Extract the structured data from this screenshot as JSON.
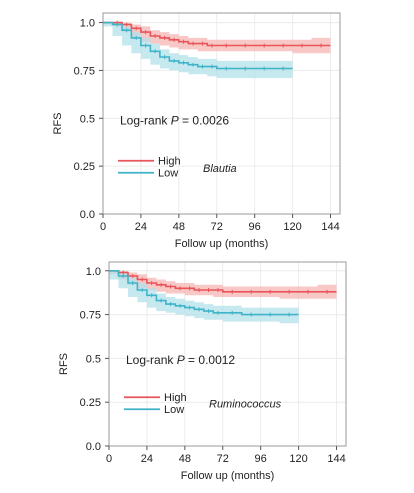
{
  "colors": {
    "high": "#e8545a",
    "high_band": "#f6b6b4",
    "low": "#3fb4c9",
    "low_band": "#b3e0ea",
    "frame": "#9a9a9a",
    "grid": "#ececec"
  },
  "chart_data": [
    {
      "type": "line",
      "title": "",
      "xlabel": "Follow up (months)",
      "ylabel": "RFS",
      "xlim": [
        0,
        150
      ],
      "ylim": [
        0,
        1.05
      ],
      "xticks": [
        0,
        24,
        48,
        72,
        96,
        120,
        144
      ],
      "yticks": [
        0.0,
        0.25,
        0.5,
        0.75,
        1.0
      ],
      "ytick_labels": [
        "0.0",
        "0.25",
        "0.5",
        "0.75",
        "1.0"
      ],
      "grid": true,
      "annotation_prefix": "Log-rank ",
      "annotation_p": "P",
      "annotation_suffix": " = 0.0026",
      "taxon": "Blautia",
      "legend_position": "lower-left",
      "series": [
        {
          "name": "High",
          "color_key": "high",
          "x": [
            0,
            6,
            12,
            18,
            24,
            30,
            36,
            42,
            48,
            54,
            60,
            66,
            72,
            84,
            96,
            108,
            120,
            132,
            144
          ],
          "y": [
            1.0,
            1.0,
            0.99,
            0.97,
            0.95,
            0.93,
            0.92,
            0.91,
            0.9,
            0.89,
            0.89,
            0.88,
            0.88,
            0.88,
            0.88,
            0.88,
            0.88,
            0.88,
            0.88
          ],
          "band_upper": [
            1.0,
            1.0,
            1.0,
            0.99,
            0.98,
            0.96,
            0.95,
            0.94,
            0.93,
            0.92,
            0.92,
            0.91,
            0.91,
            0.91,
            0.91,
            0.91,
            0.91,
            0.92,
            0.92
          ],
          "band_lower": [
            1.0,
            1.0,
            0.98,
            0.95,
            0.92,
            0.9,
            0.89,
            0.88,
            0.87,
            0.86,
            0.86,
            0.85,
            0.85,
            0.85,
            0.85,
            0.85,
            0.85,
            0.84,
            0.84
          ]
        },
        {
          "name": "Low",
          "color_key": "low",
          "x": [
            0,
            6,
            12,
            18,
            24,
            30,
            36,
            42,
            48,
            54,
            60,
            66,
            72,
            84,
            96,
            108,
            120
          ],
          "y": [
            1.0,
            0.99,
            0.96,
            0.92,
            0.88,
            0.85,
            0.82,
            0.8,
            0.79,
            0.78,
            0.77,
            0.77,
            0.76,
            0.76,
            0.76,
            0.76,
            0.76
          ],
          "band_upper": [
            1.0,
            1.0,
            0.98,
            0.95,
            0.92,
            0.89,
            0.86,
            0.84,
            0.83,
            0.82,
            0.81,
            0.81,
            0.8,
            0.8,
            0.8,
            0.8,
            0.8
          ],
          "band_lower": [
            1.0,
            0.98,
            0.93,
            0.88,
            0.84,
            0.81,
            0.78,
            0.76,
            0.75,
            0.74,
            0.73,
            0.73,
            0.72,
            0.71,
            0.71,
            0.71,
            0.71
          ]
        }
      ]
    },
    {
      "type": "line",
      "title": "",
      "xlabel": "Follow up (months)",
      "ylabel": "RFS",
      "xlim": [
        0,
        150
      ],
      "ylim": [
        0,
        1.05
      ],
      "xticks": [
        0,
        24,
        48,
        72,
        96,
        120,
        144
      ],
      "yticks": [
        0.0,
        0.25,
        0.5,
        0.75,
        1.0
      ],
      "ytick_labels": [
        "0.0",
        "0.25",
        "0.5",
        "0.75",
        "1.0"
      ],
      "grid": true,
      "annotation_prefix": "Log-rank ",
      "annotation_p": "P",
      "annotation_suffix": " = 0.0012",
      "taxon": "Ruminococcus",
      "legend_position": "lower-left",
      "series": [
        {
          "name": "High",
          "color_key": "high",
          "x": [
            0,
            6,
            12,
            18,
            24,
            30,
            36,
            42,
            48,
            54,
            60,
            66,
            72,
            84,
            96,
            108,
            120,
            132,
            144
          ],
          "y": [
            1.0,
            0.99,
            0.97,
            0.95,
            0.93,
            0.92,
            0.91,
            0.9,
            0.9,
            0.89,
            0.89,
            0.89,
            0.88,
            0.88,
            0.88,
            0.88,
            0.88,
            0.88,
            0.88
          ],
          "band_upper": [
            1.0,
            1.0,
            0.99,
            0.98,
            0.96,
            0.95,
            0.94,
            0.93,
            0.93,
            0.92,
            0.92,
            0.92,
            0.91,
            0.91,
            0.91,
            0.91,
            0.91,
            0.92,
            0.92
          ],
          "band_lower": [
            1.0,
            0.98,
            0.95,
            0.92,
            0.9,
            0.89,
            0.88,
            0.87,
            0.87,
            0.86,
            0.86,
            0.86,
            0.85,
            0.85,
            0.85,
            0.85,
            0.84,
            0.84,
            0.84
          ]
        },
        {
          "name": "Low",
          "color_key": "low",
          "x": [
            0,
            6,
            12,
            18,
            24,
            30,
            36,
            42,
            48,
            54,
            60,
            66,
            72,
            84,
            96,
            108,
            120
          ],
          "y": [
            1.0,
            0.97,
            0.93,
            0.89,
            0.86,
            0.83,
            0.81,
            0.8,
            0.79,
            0.78,
            0.77,
            0.76,
            0.76,
            0.75,
            0.75,
            0.75,
            0.75
          ],
          "band_upper": [
            1.0,
            0.99,
            0.96,
            0.93,
            0.9,
            0.87,
            0.85,
            0.84,
            0.83,
            0.82,
            0.81,
            0.8,
            0.8,
            0.79,
            0.79,
            0.79,
            0.79
          ],
          "band_lower": [
            1.0,
            0.95,
            0.9,
            0.85,
            0.82,
            0.79,
            0.77,
            0.76,
            0.75,
            0.74,
            0.73,
            0.72,
            0.72,
            0.71,
            0.71,
            0.71,
            0.7
          ]
        }
      ]
    }
  ]
}
